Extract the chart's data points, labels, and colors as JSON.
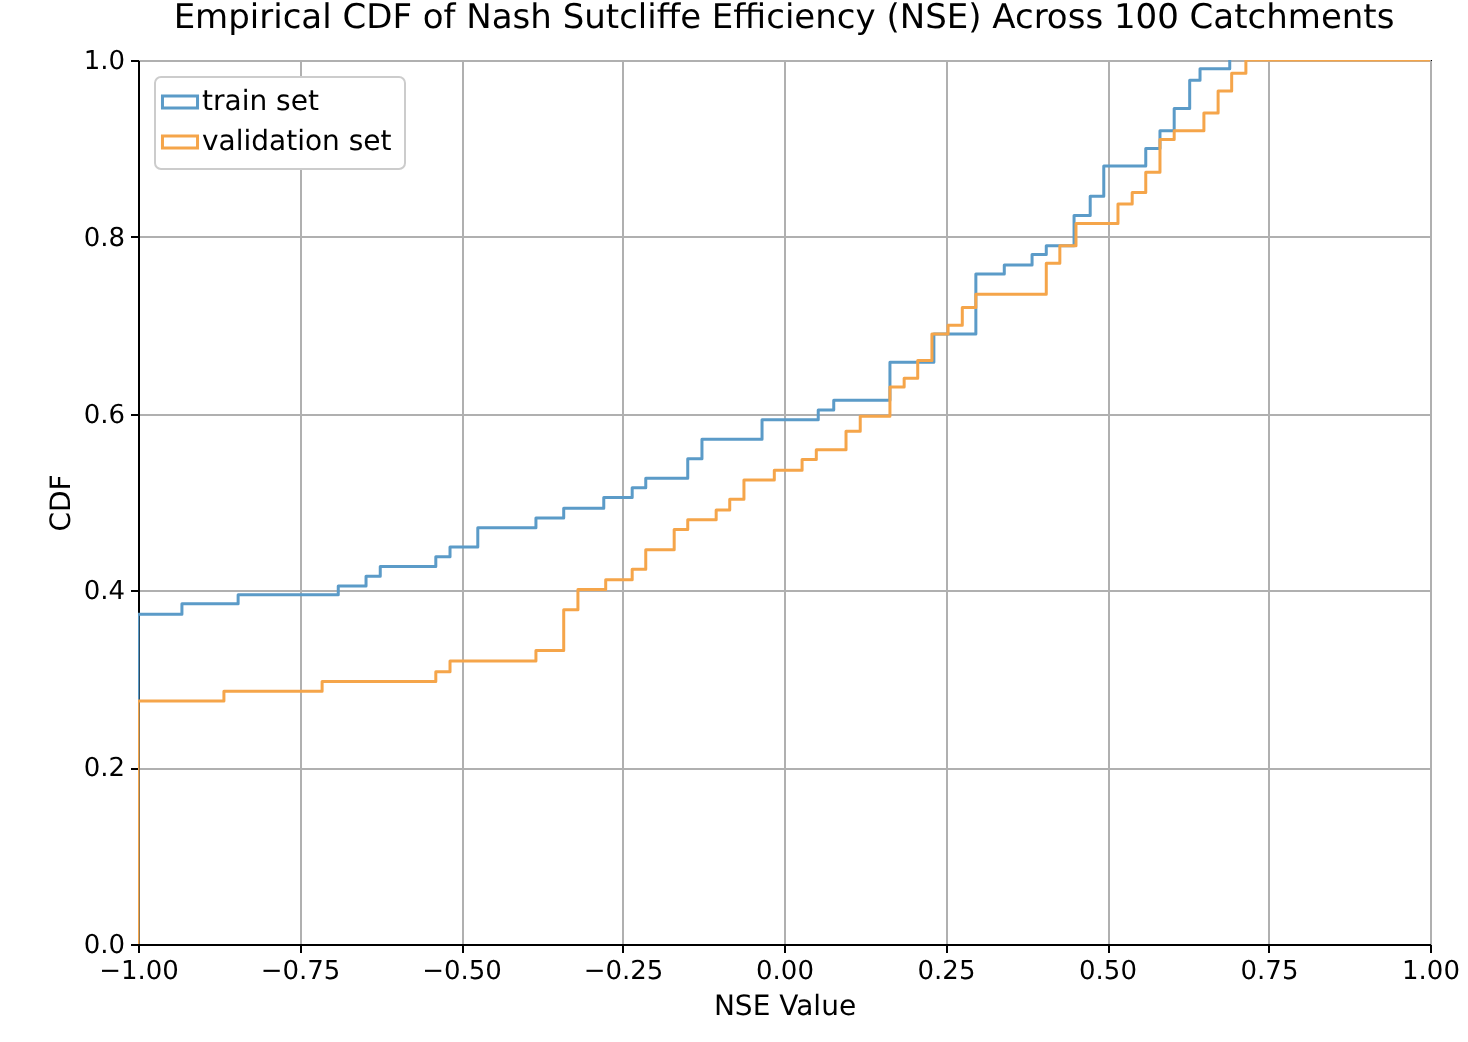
{
  "chart_data": {
    "type": "step",
    "title": "Empirical CDF of Nash Sutcliffe Efficiency (NSE) Across 100 Catchments",
    "xlabel": "NSE Value",
    "ylabel": "CDF",
    "xlim": [
      -1,
      1
    ],
    "ylim": [
      0,
      1
    ],
    "xticks": [
      {
        "value": -1,
        "label": "−1.00"
      },
      {
        "value": -0.75,
        "label": "−0.75"
      },
      {
        "value": -0.5,
        "label": "−0.50"
      },
      {
        "value": -0.25,
        "label": "−0.25"
      },
      {
        "value": 0,
        "label": "0.00"
      },
      {
        "value": 0.25,
        "label": "0.25"
      },
      {
        "value": 0.5,
        "label": "0.50"
      },
      {
        "value": 0.75,
        "label": "0.75"
      },
      {
        "value": 1,
        "label": "1.00"
      }
    ],
    "yticks": [
      {
        "value": 0,
        "label": "0.0"
      },
      {
        "value": 0.2,
        "label": "0.2"
      },
      {
        "value": 0.4,
        "label": "0.4"
      },
      {
        "value": 0.6,
        "label": "0.6"
      },
      {
        "value": 0.8,
        "label": "0.8"
      },
      {
        "value": 1,
        "label": "1.0"
      }
    ],
    "grid": true,
    "legend": "top left",
    "series": [
      {
        "name": "train set",
        "color": "#5b9bc8",
        "x": [
          -1,
          -1,
          -0.932,
          -0.845,
          -0.69,
          -0.647,
          -0.625,
          -0.539,
          -0.517,
          -0.474,
          -0.384,
          -0.341,
          -0.279,
          -0.235,
          -0.214,
          -0.149,
          -0.127,
          -0.034,
          0.053,
          0.077,
          0.164,
          0.232,
          0.297,
          0.341,
          0.384,
          0.406,
          0.449,
          0.474,
          0.495,
          0.56,
          0.582,
          0.604,
          0.628,
          0.644,
          0.69
        ],
        "values": [
          0,
          0.373,
          0.385,
          0.395,
          0.405,
          0.416,
          0.427,
          0.438,
          0.449,
          0.471,
          0.482,
          0.493,
          0.505,
          0.516,
          0.527,
          0.549,
          0.571,
          0.593,
          0.604,
          0.615,
          0.658,
          0.69,
          0.758,
          0.768,
          0.78,
          0.79,
          0.824,
          0.846,
          0.88,
          0.9,
          0.92,
          0.945,
          0.977,
          0.99,
          1
        ]
      },
      {
        "name": "validation set",
        "color": "#f5a54a",
        "x": [
          -1,
          -1,
          -0.867,
          -0.715,
          -0.539,
          -0.517,
          -0.384,
          -0.341,
          -0.319,
          -0.276,
          -0.235,
          -0.214,
          -0.17,
          -0.149,
          -0.105,
          -0.084,
          -0.062,
          -0.015,
          0.028,
          0.05,
          0.096,
          0.118,
          0.164,
          0.186,
          0.207,
          0.229,
          0.254,
          0.276,
          0.297,
          0.406,
          0.427,
          0.452,
          0.517,
          0.539,
          0.56,
          0.582,
          0.604,
          0.65,
          0.672,
          0.693,
          0.715,
          1
        ],
        "values": [
          0,
          0.275,
          0.286,
          0.297,
          0.308,
          0.32,
          0.332,
          0.378,
          0.401,
          0.412,
          0.424,
          0.446,
          0.469,
          0.48,
          0.491,
          0.503,
          0.525,
          0.536,
          0.548,
          0.559,
          0.58,
          0.597,
          0.63,
          0.64,
          0.66,
          0.69,
          0.7,
          0.72,
          0.735,
          0.77,
          0.79,
          0.815,
          0.837,
          0.85,
          0.873,
          0.91,
          0.92,
          0.94,
          0.965,
          0.985,
          1,
          1
        ]
      }
    ]
  }
}
